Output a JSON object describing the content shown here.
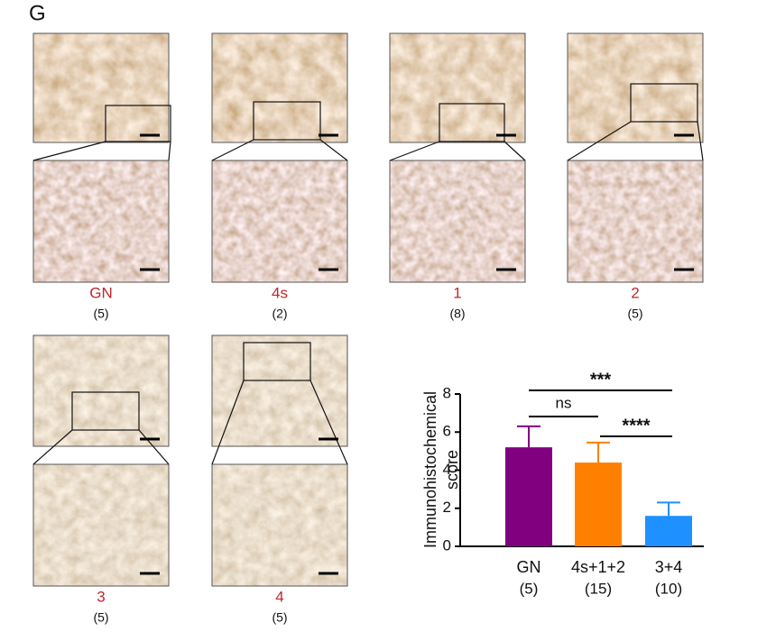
{
  "panel_label": "G",
  "panels": [
    {
      "label": "GN",
      "n": "(5)"
    },
    {
      "label": "4s",
      "n": "(2)"
    },
    {
      "label": "1",
      "n": "(8)"
    },
    {
      "label": "2",
      "n": "(5)"
    },
    {
      "label": "3",
      "n": "(5)"
    },
    {
      "label": "4",
      "n": "(5)"
    }
  ],
  "chart_data": {
    "type": "bar",
    "ylabel": [
      "Immunohistochemical",
      "score"
    ],
    "categories": [
      "GN",
      "4s+1+2",
      "3+4"
    ],
    "n_labels": [
      "(5)",
      "(15)",
      "(10)"
    ],
    "values": [
      5.2,
      4.4,
      1.6
    ],
    "errors": [
      1.1,
      1.05,
      0.7
    ],
    "colors": [
      "#800080",
      "#ff8000",
      "#1e90ff"
    ],
    "ylim": [
      0,
      8
    ],
    "yticks": [
      0,
      2,
      4,
      6,
      8
    ],
    "annotations": [
      {
        "text": "***",
        "between": [
          "GN",
          "3+4"
        ]
      },
      {
        "text": "ns",
        "between": [
          "GN",
          "4s+1+2"
        ]
      },
      {
        "text": "****",
        "between": [
          "4s+1+2",
          "3+4"
        ]
      }
    ]
  }
}
